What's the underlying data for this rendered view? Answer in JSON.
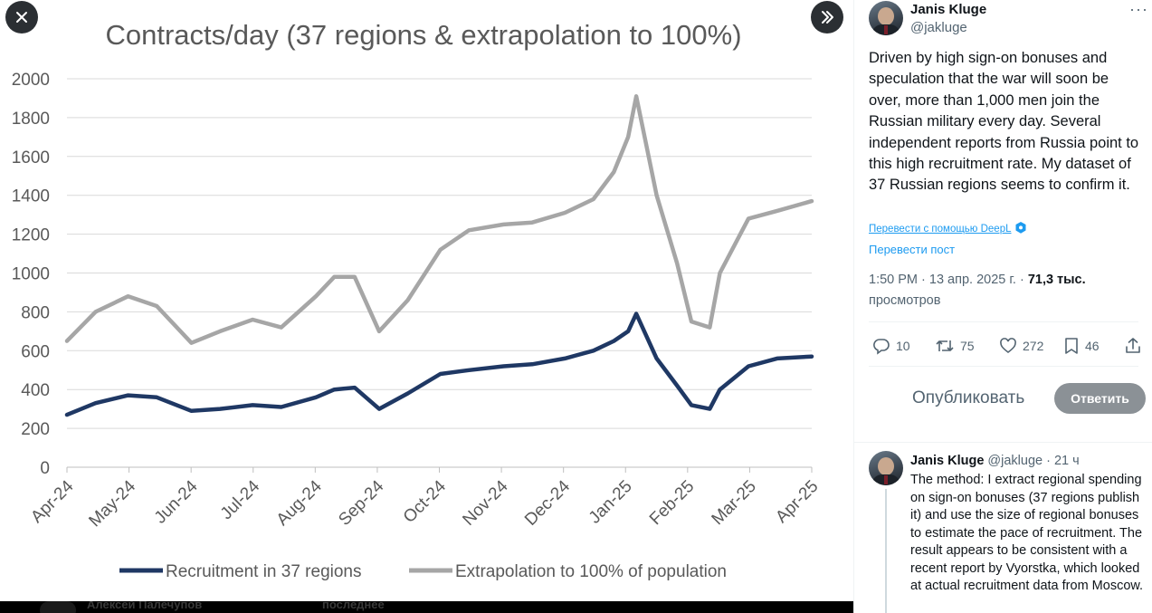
{
  "viewer": {
    "close_icon": "close-icon",
    "next_icon": "chevron-double-right-icon",
    "bottom_strip_left": "Алексей Палечупов",
    "bottom_strip_right": "последнее"
  },
  "chart_data": {
    "type": "line",
    "title": "Contracts/day (37 regions & extrapolation to 100%)",
    "xlabel": "",
    "ylabel": "",
    "ylim": [
      0,
      2000
    ],
    "yticks": [
      0,
      200,
      400,
      600,
      800,
      1000,
      1200,
      1400,
      1600,
      1800,
      2000
    ],
    "xlim": [
      "2024-04-01",
      "2025-04-01"
    ],
    "xticks": [
      "Apr-24",
      "May-24",
      "Jun-24",
      "Jul-24",
      "Aug-24",
      "Sep-24",
      "Oct-24",
      "Nov-24",
      "Dec-24",
      "Jan-25",
      "Feb-25",
      "Mar-25",
      "Apr-25"
    ],
    "grid": "horizontal",
    "legend": "bottom",
    "series": [
      {
        "name": "Recruitment in 37 regions",
        "color": "#1f3864",
        "x": [
          "2024-04-01",
          "2024-04-15",
          "2024-05-01",
          "2024-05-15",
          "2024-06-01",
          "2024-06-15",
          "2024-07-01",
          "2024-07-15",
          "2024-08-01",
          "2024-08-10",
          "2024-08-20",
          "2024-09-01",
          "2024-09-15",
          "2024-10-01",
          "2024-10-15",
          "2024-11-01",
          "2024-11-15",
          "2024-12-01",
          "2024-12-15",
          "2024-12-25",
          "2025-01-01",
          "2025-01-05",
          "2025-01-15",
          "2025-01-25",
          "2025-02-01",
          "2025-02-10",
          "2025-02-15",
          "2025-03-01",
          "2025-03-15",
          "2025-04-01"
        ],
        "values": [
          270,
          330,
          370,
          360,
          290,
          300,
          320,
          310,
          360,
          400,
          410,
          300,
          380,
          480,
          500,
          520,
          530,
          560,
          600,
          650,
          700,
          790,
          560,
          420,
          320,
          300,
          400,
          520,
          560,
          570
        ]
      },
      {
        "name": "Extrapolation to 100% of population",
        "color": "#a6a6a6",
        "x": [
          "2024-04-01",
          "2024-04-15",
          "2024-05-01",
          "2024-05-15",
          "2024-06-01",
          "2024-06-15",
          "2024-07-01",
          "2024-07-15",
          "2024-08-01",
          "2024-08-10",
          "2024-08-20",
          "2024-09-01",
          "2024-09-15",
          "2024-10-01",
          "2024-10-15",
          "2024-11-01",
          "2024-11-15",
          "2024-12-01",
          "2024-12-15",
          "2024-12-25",
          "2025-01-01",
          "2025-01-05",
          "2025-01-15",
          "2025-01-25",
          "2025-02-01",
          "2025-02-10",
          "2025-02-15",
          "2025-03-01",
          "2025-03-15",
          "2025-04-01"
        ],
        "values": [
          650,
          800,
          880,
          830,
          640,
          700,
          760,
          720,
          880,
          980,
          980,
          700,
          860,
          1120,
          1220,
          1250,
          1260,
          1310,
          1380,
          1520,
          1700,
          1910,
          1400,
          1050,
          750,
          720,
          1000,
          1280,
          1320,
          1370
        ]
      }
    ]
  },
  "tweet": {
    "author_name": "Janis Kluge",
    "author_handle": "@jakluge",
    "more_icon": "···",
    "text": "Driven by high sign-on bonuses and speculation that the war will soon be over, more than 1,000 men join the Russian military every day. Several independent reports from Russia point to this high recruitment rate. My dataset of 37 Russian regions seems to confirm it.",
    "translate_deepl": "Перевести с помощью DeepL",
    "translate_post": "Перевести пост",
    "meta_time": "1:50 PM · 13 апр. 2025 г. · ",
    "meta_views_count": "71,3 тыс.",
    "meta_views_label": "просмотров",
    "stats": {
      "replies": "10",
      "reposts": "75",
      "likes": "272",
      "bookmarks": "46"
    }
  },
  "reply_box": {
    "placeholder": "Опубликовать",
    "button": "Ответить"
  },
  "reply": {
    "author_name": "Janis Kluge",
    "author_handle": "@jakluge",
    "time": "· 21 ч",
    "text": "The method: I extract regional spending on sign-on bonuses (37 regions publish it) and use the size of regional bonuses to estimate the pace of recruitment. The result appears to be consistent with a recent report by Vyorstka, which looked at actual recruitment data from Moscow."
  }
}
